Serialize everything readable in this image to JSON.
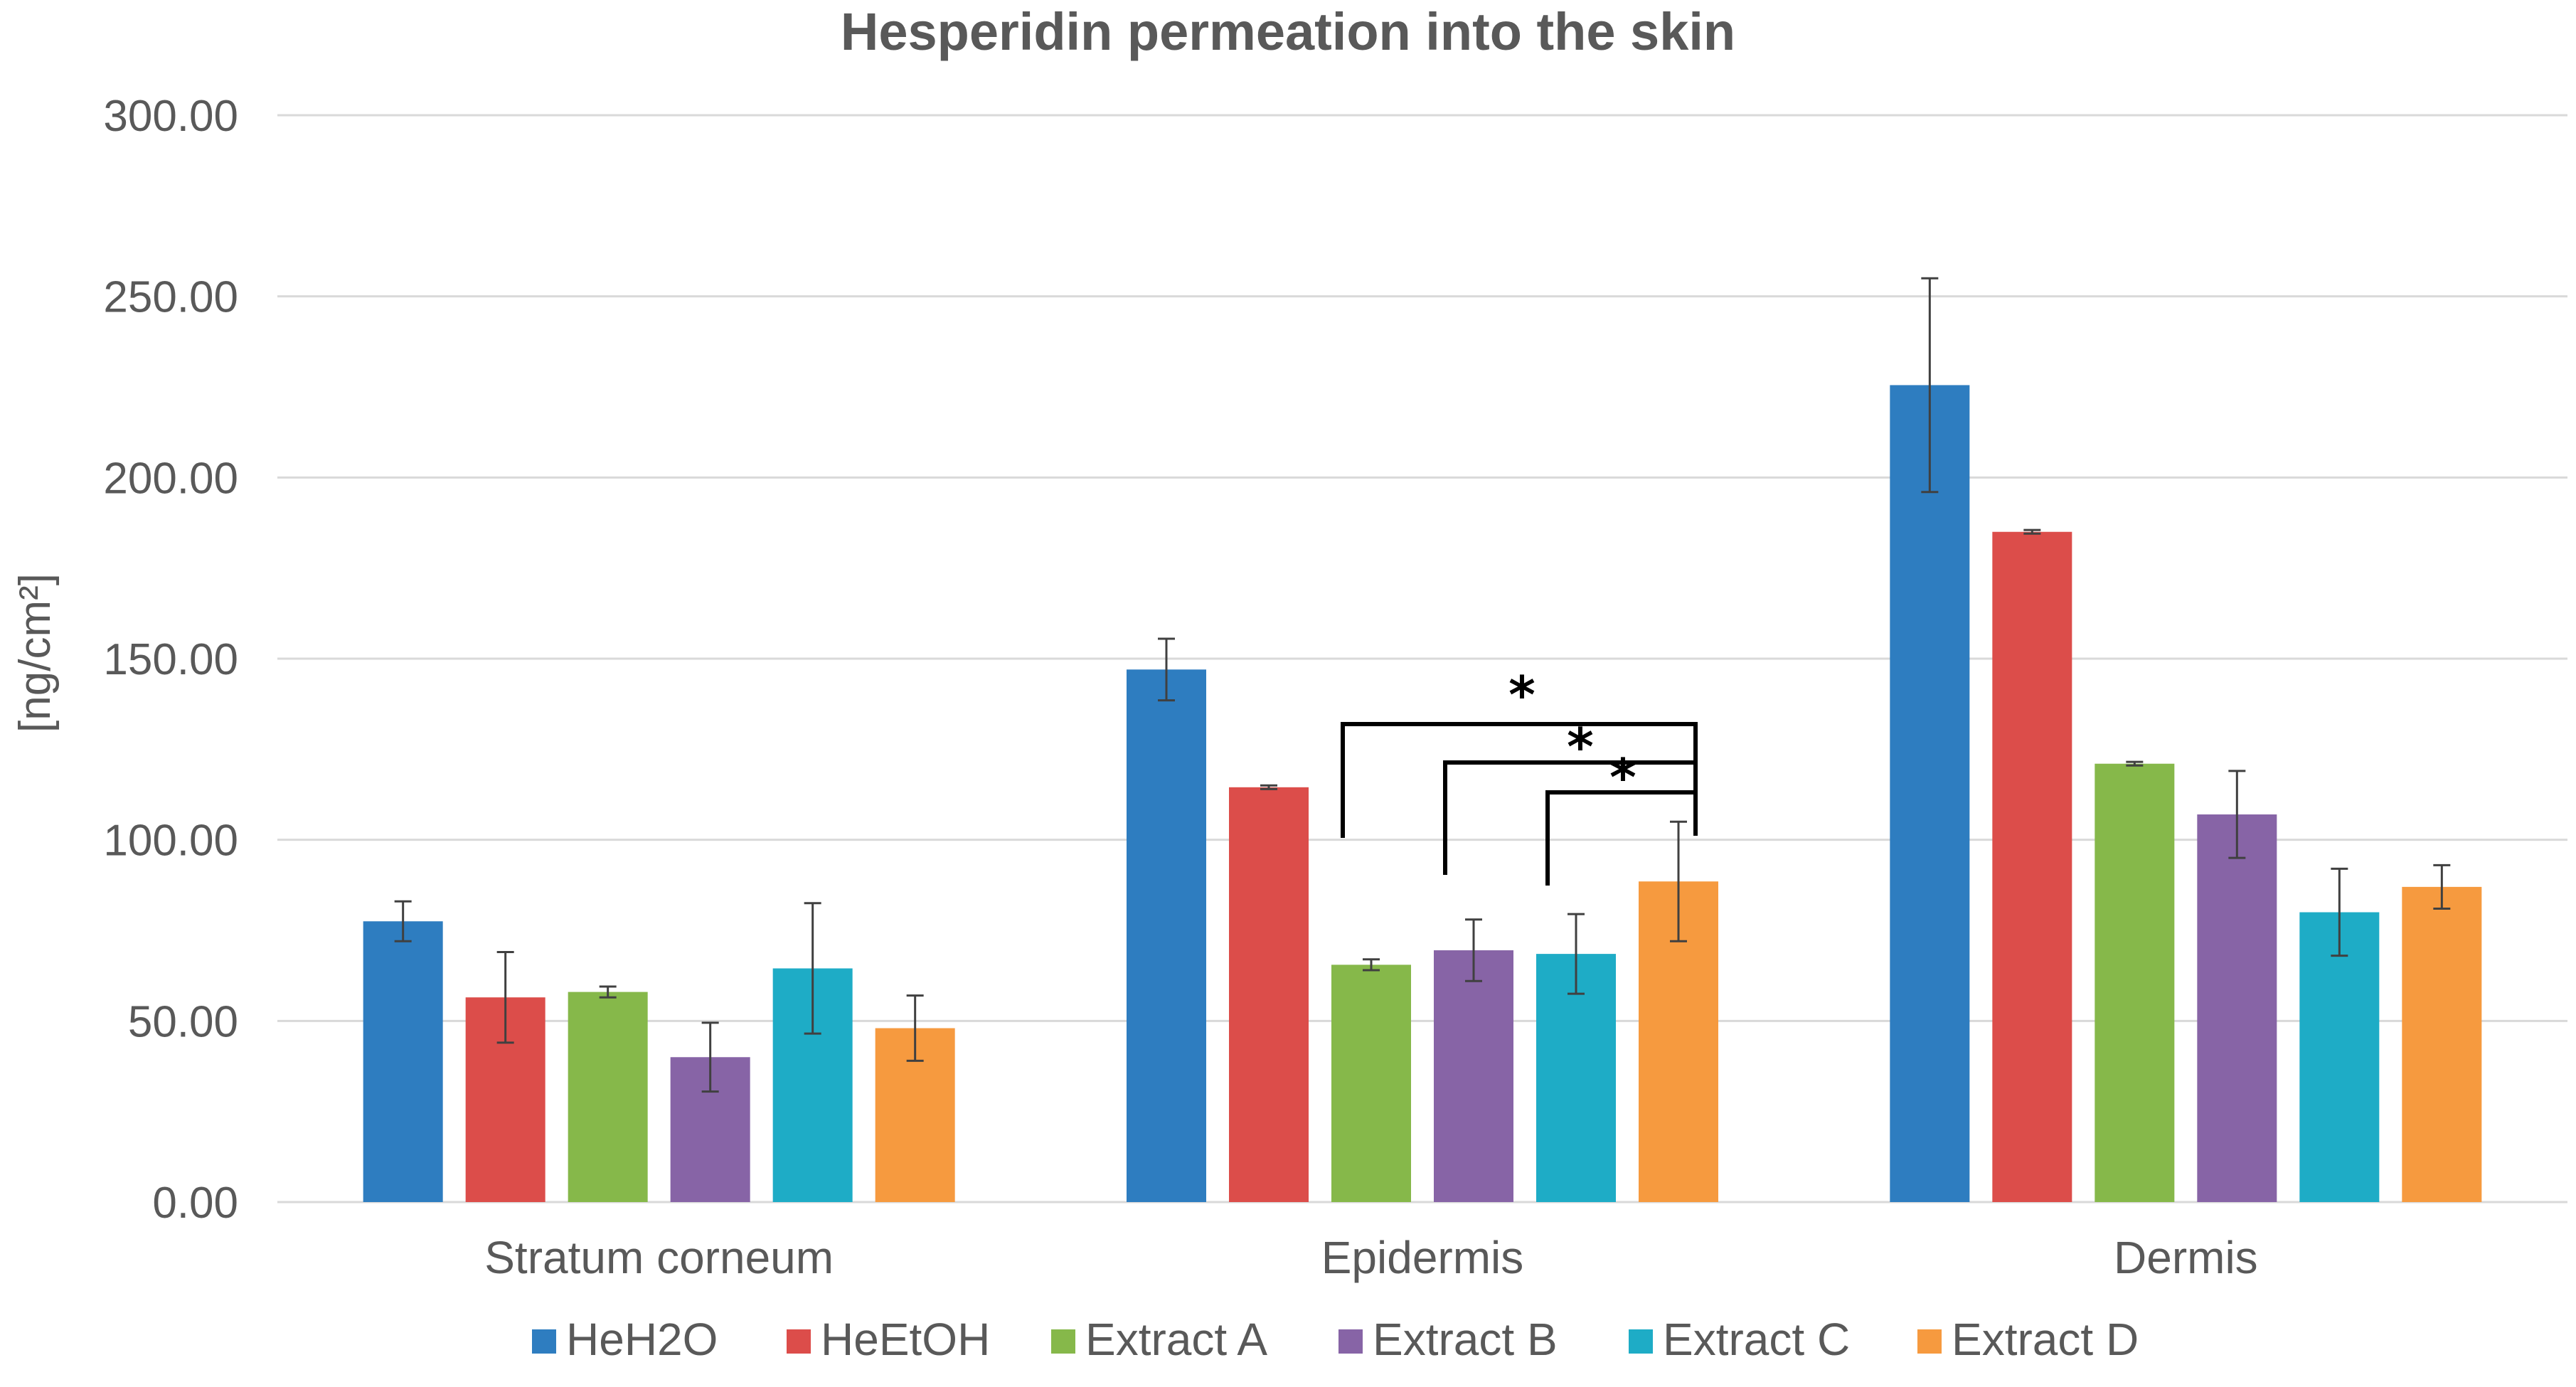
{
  "chart_data": {
    "type": "bar",
    "title": "Hesperidin permeation into the skin",
    "xlabel": "",
    "ylabel": "[ng/cm²]",
    "ylim": [
      0,
      300
    ],
    "yticks": [
      "0.00",
      "50.00",
      "100.00",
      "150.00",
      "200.00",
      "250.00",
      "300.00"
    ],
    "grid": true,
    "legend_position": "bottom",
    "categories": [
      "Stratum corneum",
      "Epidermis",
      "Dermis"
    ],
    "series": [
      {
        "name": "HeH2O",
        "color": "#2e7dc0",
        "values": [
          77.5,
          147.0,
          225.5
        ],
        "errors": [
          5.5,
          8.5,
          29.5
        ]
      },
      {
        "name": "HeEtOH",
        "color": "#dc4d4a",
        "values": [
          56.5,
          114.5,
          185.0
        ],
        "errors": [
          12.5,
          0.5,
          0.5
        ]
      },
      {
        "name": "Extract A",
        "color": "#86b84a",
        "values": [
          58.0,
          65.5,
          121.0
        ],
        "errors": [
          1.5,
          1.5,
          0.5
        ]
      },
      {
        "name": "Extract B",
        "color": "#8764a6",
        "values": [
          40.0,
          69.5,
          107.0
        ],
        "errors": [
          9.5,
          8.5,
          12.0
        ]
      },
      {
        "name": "Extract C",
        "color": "#1eacc6",
        "values": [
          64.5,
          68.5,
          80.0
        ],
        "errors": [
          18.0,
          11.0,
          12.0
        ]
      },
      {
        "name": "Extract D",
        "color": "#f69a3f",
        "values": [
          48.0,
          88.5,
          87.0
        ],
        "errors": [
          9.0,
          16.5,
          6.0
        ]
      }
    ],
    "annotations": {
      "significance": [
        {
          "category": "Epidermis",
          "from": "Extract A",
          "to": "Extract D",
          "label": "*"
        },
        {
          "category": "Epidermis",
          "from": "Extract B",
          "to": "Extract D",
          "label": "*"
        },
        {
          "category": "Epidermis",
          "from": "Extract C",
          "to": "Extract D",
          "label": "*"
        }
      ]
    }
  }
}
